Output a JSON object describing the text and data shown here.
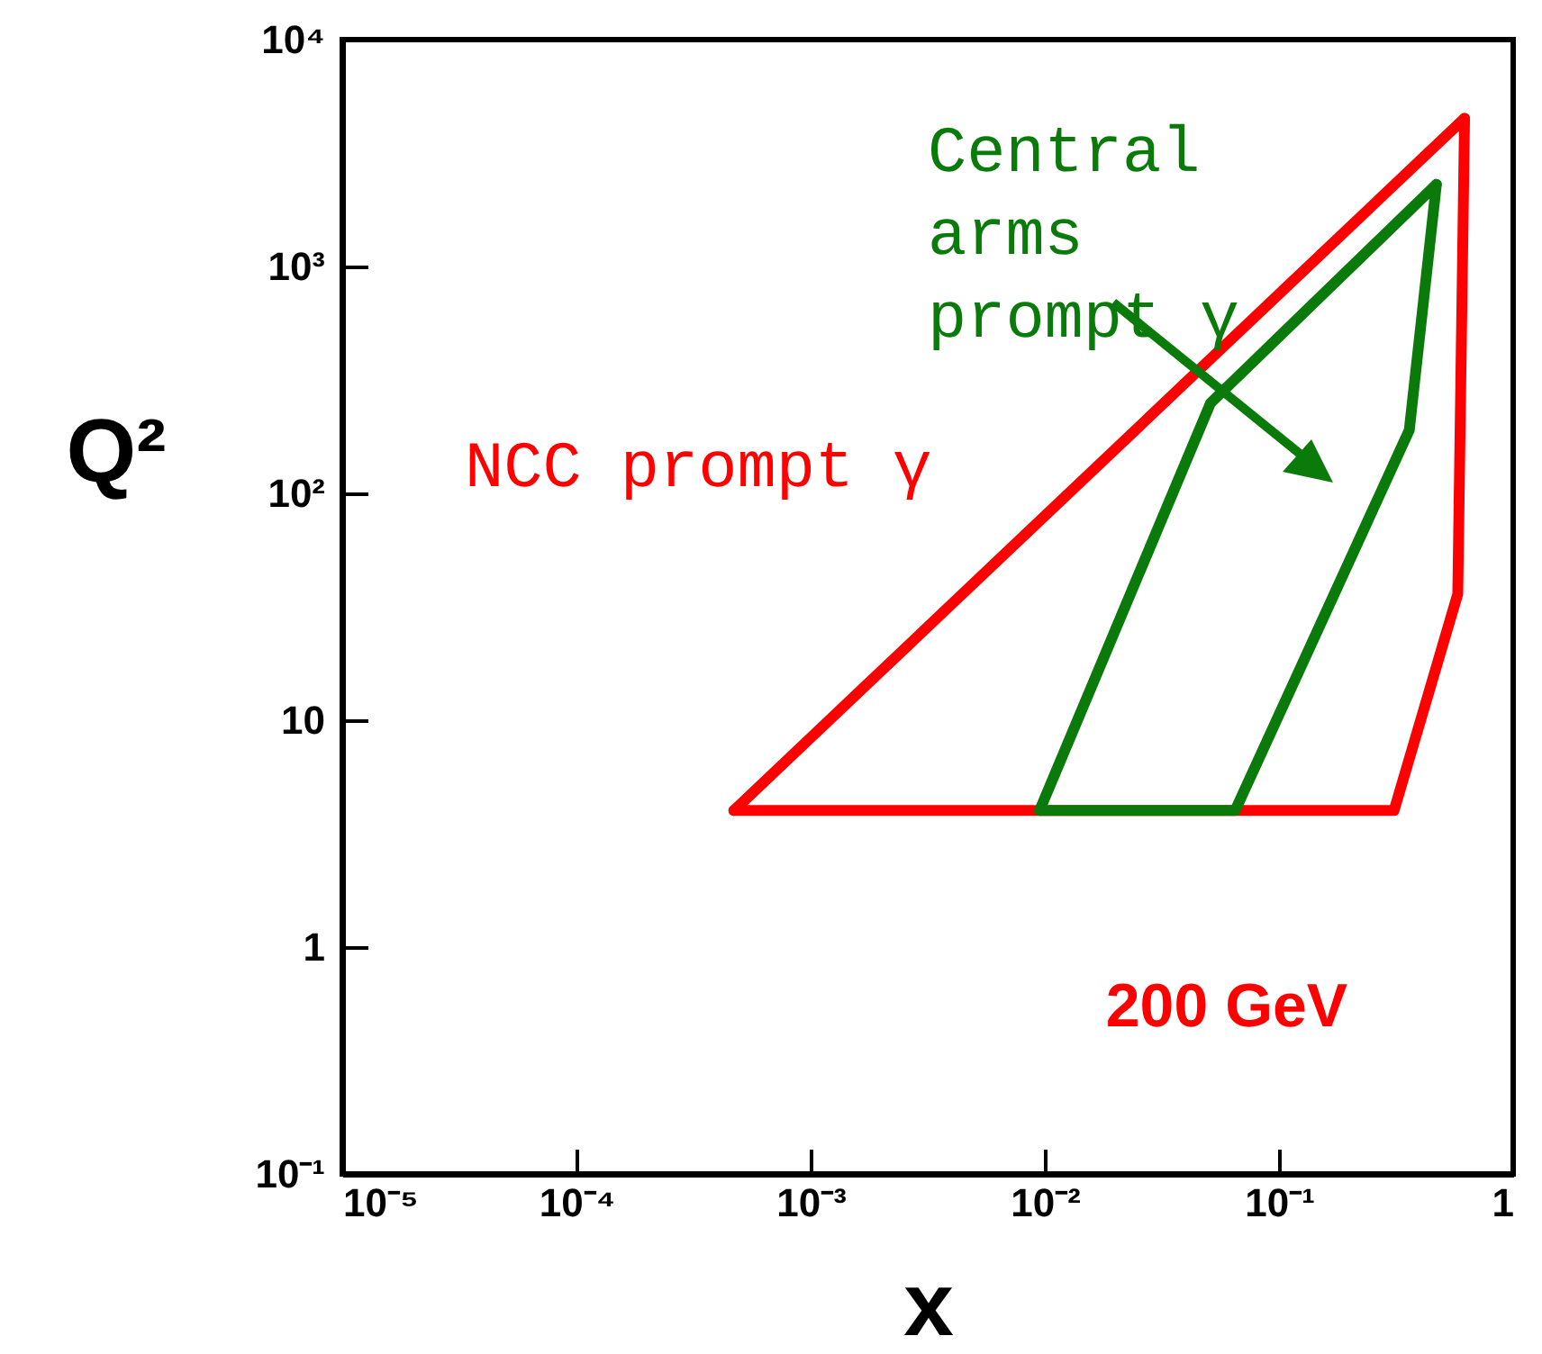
{
  "chart_data": {
    "type": "line",
    "xlabel": "x",
    "ylabel": "Q²",
    "log": "xy",
    "grid": false,
    "legend": false,
    "marker": "none",
    "line_style": "solid",
    "xlim": [
      1e-05,
      1
    ],
    "ylim": [
      0.1,
      10000
    ],
    "xticks": [
      {
        "value": 1e-05,
        "label": "10⁻⁵"
      },
      {
        "value": 0.0001,
        "label": "10⁻⁴"
      },
      {
        "value": 0.001,
        "label": "10⁻³"
      },
      {
        "value": 0.01,
        "label": "10⁻²"
      },
      {
        "value": 0.1,
        "label": "10⁻¹"
      },
      1
    ],
    "yticks": [
      {
        "value": 0.1,
        "label": "10⁻¹"
      },
      1,
      10,
      {
        "value": 100,
        "label": "10²"
      },
      {
        "value": 1000,
        "label": "10³"
      },
      {
        "value": 10000,
        "label": "10⁴"
      }
    ],
    "series": [
      {
        "name": "NCC prompt γ",
        "color": "#ff0000",
        "x": [
          0.00047,
          0.62
        ],
        "values": [
          4,
          4500
        ]
      },
      {
        "color": "#ff0000",
        "x": [
          0.00047,
          0.31,
          0.58,
          0.62
        ],
        "values": [
          4,
          4,
          36,
          4500
        ]
      },
      {
        "name": "Central arms prompt γ",
        "color": "#0a7a0a",
        "x": [
          0.0095,
          0.051,
          0.47
        ],
        "values": [
          4,
          250,
          2300
        ]
      },
      {
        "color": "#0a7a0a",
        "x": [
          0.0095,
          0.065,
          0.36,
          0.47
        ],
        "values": [
          4,
          4,
          190,
          2300
        ]
      }
    ],
    "annotations": [
      "200 GeV"
    ]
  }
}
